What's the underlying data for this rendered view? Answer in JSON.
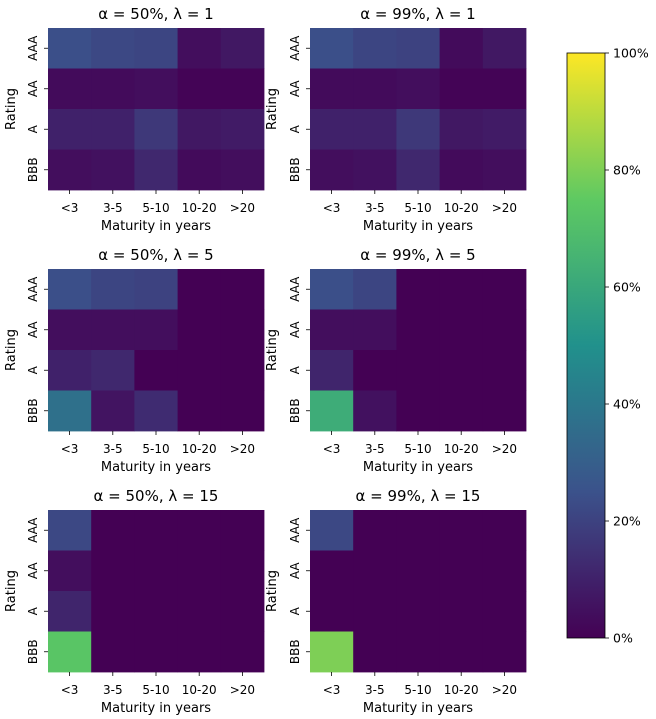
{
  "chart_data": {
    "type": "heatmap",
    "x_categories": [
      "<3",
      "3-5",
      "5-10",
      "10-20",
      ">20"
    ],
    "y_categories": [
      "AAA",
      "AA",
      "A",
      "BBB"
    ],
    "xlabel": "Maturity in years",
    "ylabel": "Rating",
    "value_unit": "%",
    "colormap": [
      "#440154",
      "#3b528b",
      "#21918c",
      "#5ec962",
      "#fde725"
    ],
    "colorbar": {
      "range": [
        0,
        100
      ],
      "ticks": [
        0,
        20,
        40,
        60,
        80,
        100
      ],
      "tick_labels": [
        "0%",
        "20%",
        "40%",
        "60%",
        "80%",
        "100%"
      ]
    },
    "panels": [
      {
        "id": "a50-l1",
        "title_alpha": "α = 50%",
        "title_lambda": "λ = 1",
        "values": [
          [
            24,
            22,
            21,
            4,
            7
          ],
          [
            3,
            3,
            4,
            1,
            1
          ],
          [
            10,
            10,
            17,
            7,
            8
          ],
          [
            4,
            5,
            12,
            3,
            4
          ]
        ]
      },
      {
        "id": "a99-l1",
        "title_alpha": "α = 99%",
        "title_lambda": "λ = 1",
        "values": [
          [
            24,
            21,
            20,
            3,
            7
          ],
          [
            3,
            3,
            4,
            1,
            1
          ],
          [
            10,
            10,
            17,
            7,
            8
          ],
          [
            4,
            5,
            12,
            3,
            4
          ]
        ]
      },
      {
        "id": "a50-l5",
        "title_alpha": "α = 50%",
        "title_lambda": "λ = 5",
        "values": [
          [
            24,
            21,
            20,
            0,
            0
          ],
          [
            4,
            4,
            4,
            0,
            0
          ],
          [
            10,
            12,
            0,
            0,
            0
          ],
          [
            37,
            6,
            13,
            0,
            0
          ]
        ]
      },
      {
        "id": "a99-l5",
        "title_alpha": "α = 99%",
        "title_lambda": "λ = 5",
        "values": [
          [
            24,
            21,
            0,
            0,
            0
          ],
          [
            4,
            4,
            0,
            0,
            0
          ],
          [
            11,
            0,
            0,
            0,
            0
          ],
          [
            62,
            5,
            0,
            0,
            0
          ]
        ]
      },
      {
        "id": "a50-l15",
        "title_alpha": "α = 50%",
        "title_lambda": "λ = 15",
        "values": [
          [
            22,
            0,
            0,
            0,
            0
          ],
          [
            4,
            0,
            0,
            0,
            0
          ],
          [
            11,
            0,
            0,
            0,
            0
          ],
          [
            73,
            0,
            0,
            0,
            0
          ]
        ]
      },
      {
        "id": "a99-l15",
        "title_alpha": "α = 99%",
        "title_lambda": "λ = 15",
        "values": [
          [
            22,
            0,
            0,
            0,
            0
          ],
          [
            0,
            0,
            0,
            0,
            0
          ],
          [
            0,
            0,
            0,
            0,
            0
          ],
          [
            80,
            0,
            0,
            0,
            0
          ]
        ]
      }
    ]
  }
}
